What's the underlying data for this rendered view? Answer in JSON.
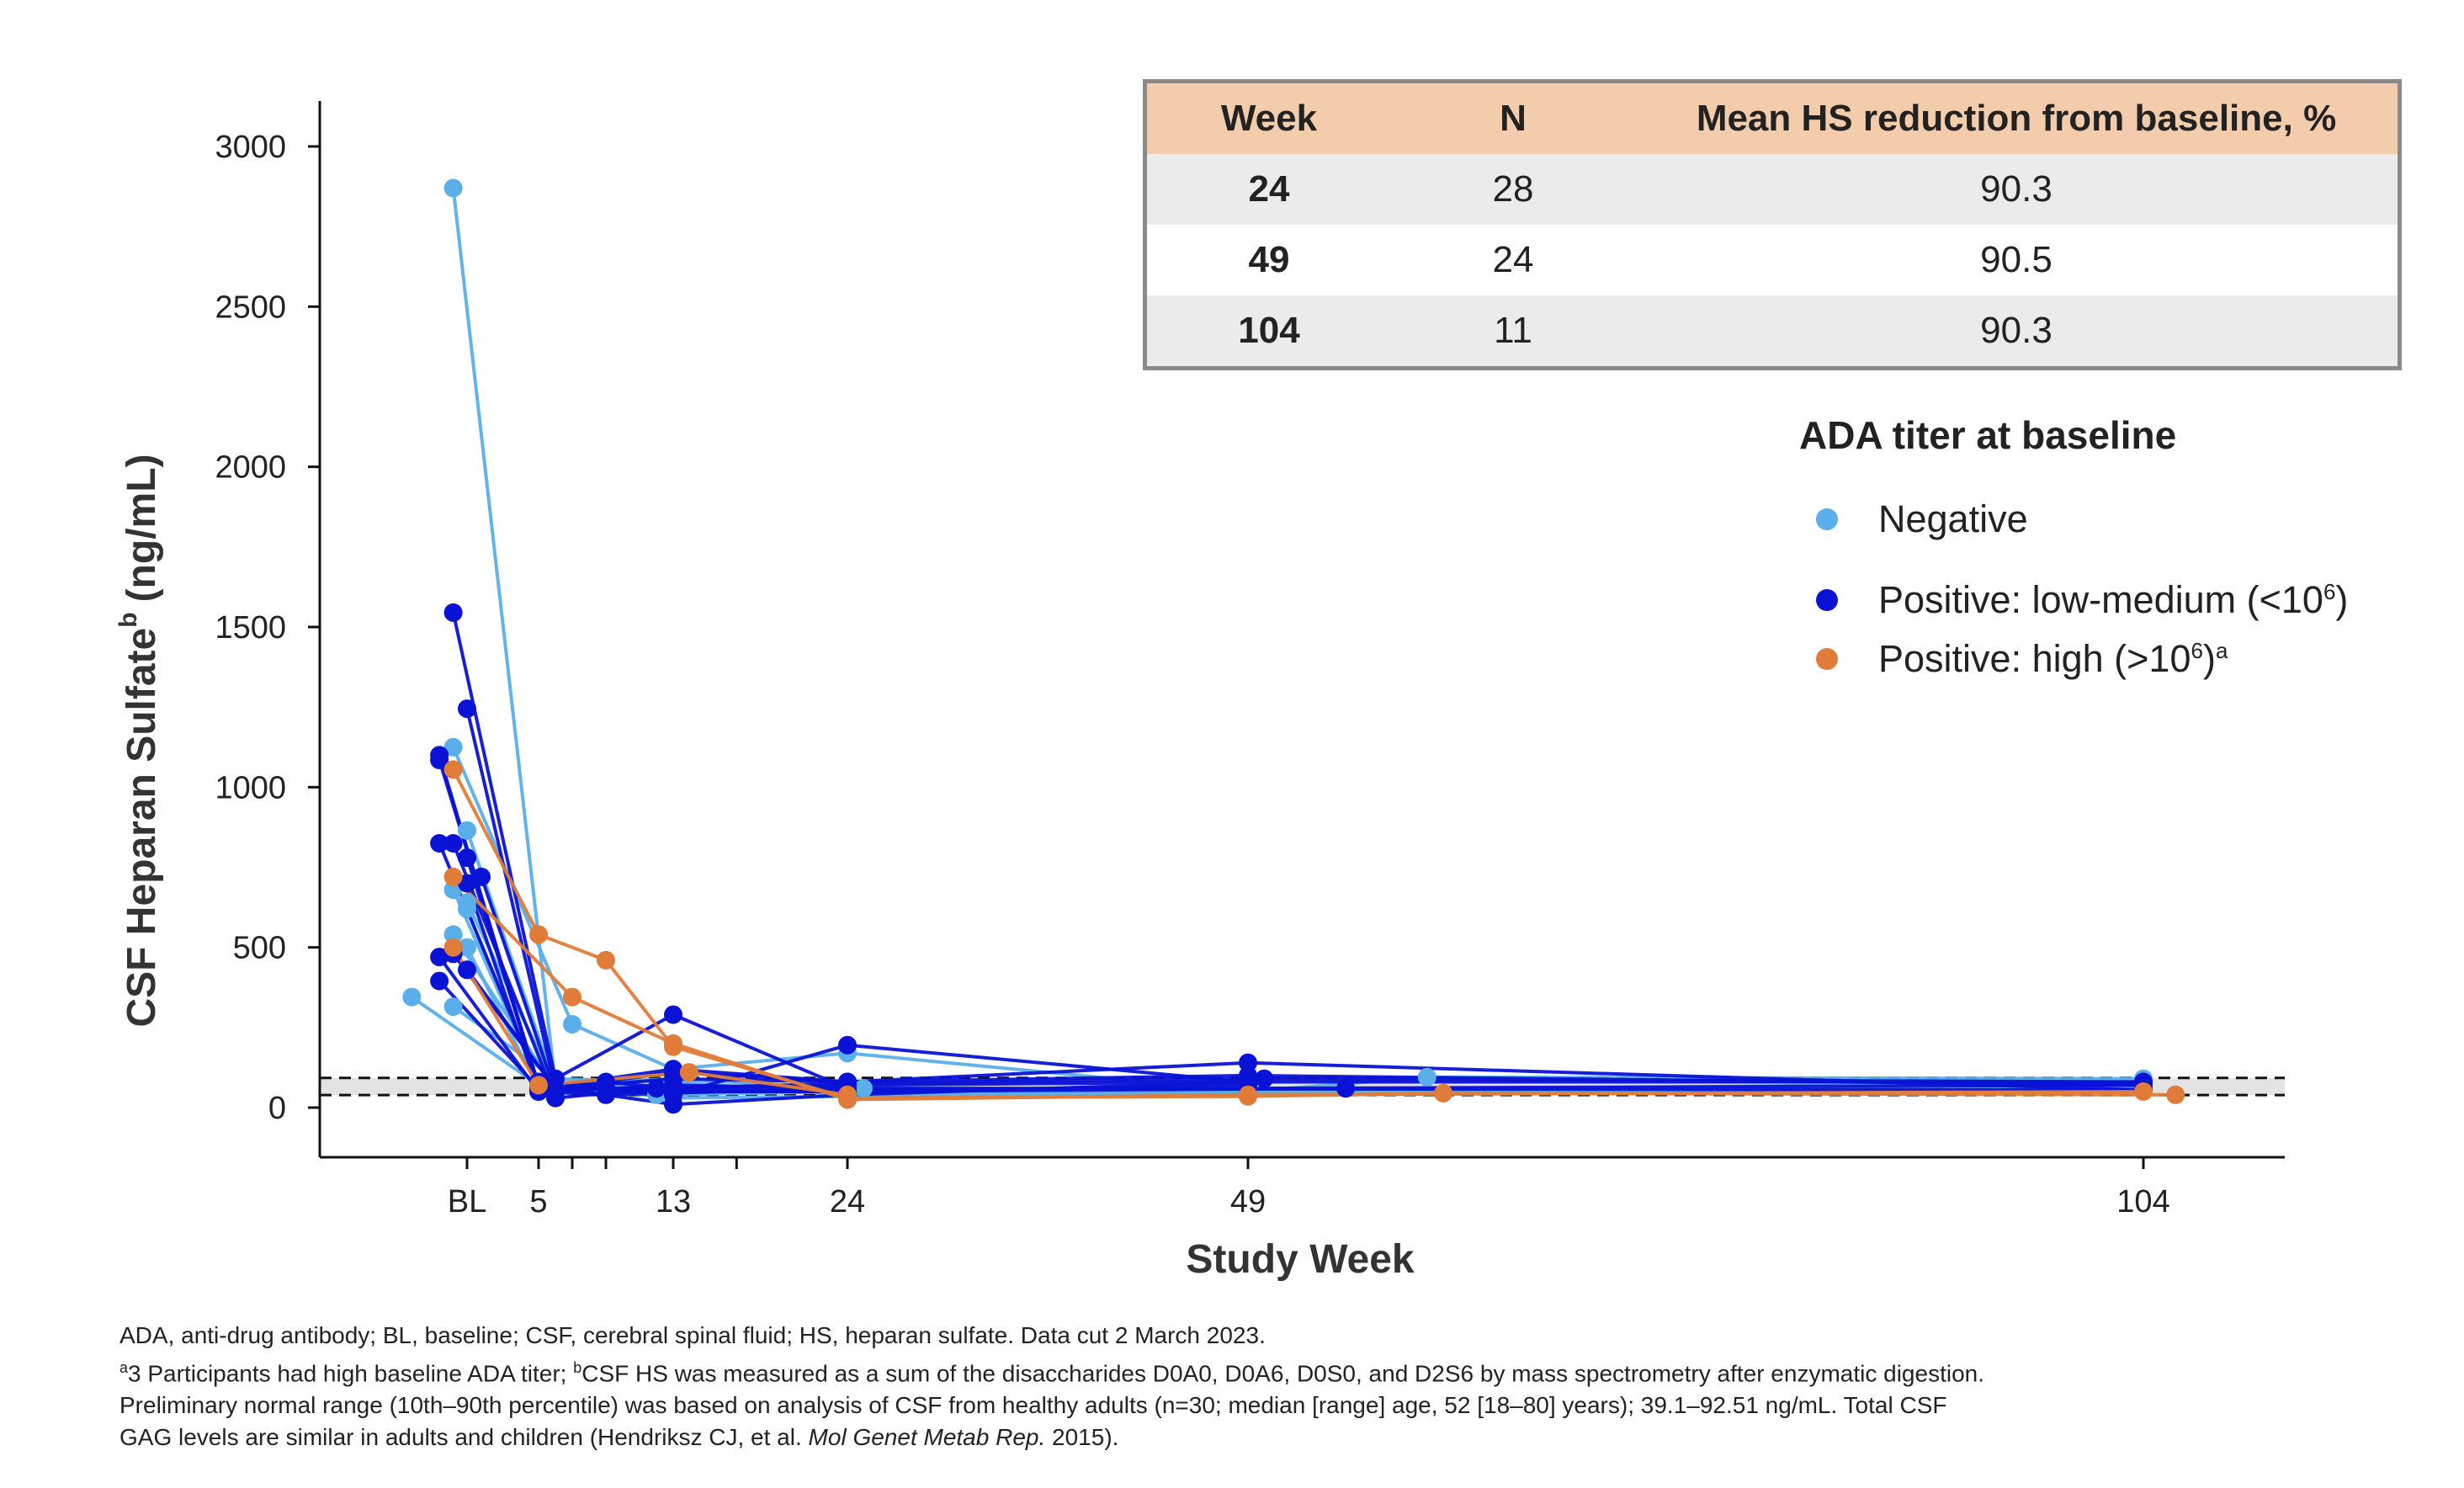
{
  "chart_data": {
    "type": "line",
    "ylabel": "CSF Heparan Sulfate",
    "ylabel_sup": "b",
    "ylabel_unit": "(ng/mL)",
    "xlabel": "Study Week",
    "ylim": [
      0,
      3000
    ],
    "y_ticks": [
      0,
      500,
      1000,
      1500,
      2000,
      2500,
      3000
    ],
    "x_ticks": [
      {
        "label": "BL",
        "week": 0
      },
      {
        "label": "5",
        "week": 5
      },
      {
        "label": "13",
        "week": 13
      },
      {
        "label": "24",
        "week": 24
      },
      {
        "label": "49",
        "week": 49
      },
      {
        "label": "104",
        "week": 104
      }
    ],
    "x_minor_ticks": [
      7,
      9,
      17
    ],
    "xlim": [
      -7,
      112
    ],
    "normal_range": {
      "low": 39.1,
      "high": 92.51
    },
    "series": [
      {
        "name": "Negative",
        "color": "#5aaeea",
        "participants": [
          [
            [
              -1,
              2870
            ],
            [
              6,
              70
            ],
            [
              24,
              50
            ],
            [
              49,
              50
            ],
            [
              104,
              80
            ]
          ],
          [
            [
              -4,
              345
            ],
            [
              5,
              70
            ],
            [
              13,
              40
            ],
            [
              24,
              60
            ]
          ],
          [
            [
              -1,
              1125
            ],
            [
              7,
              260
            ],
            [
              13,
              120
            ],
            [
              24,
              170
            ],
            [
              49,
              50
            ]
          ],
          [
            [
              0,
              865
            ],
            [
              6,
              70
            ],
            [
              13,
              60
            ],
            [
              24,
              45
            ],
            [
              49,
              45
            ],
            [
              104,
              60
            ]
          ],
          [
            [
              -1,
              680
            ],
            [
              5,
              80
            ],
            [
              13,
              50
            ],
            [
              25,
              60
            ]
          ],
          [
            [
              0,
              620
            ],
            [
              5,
              70
            ],
            [
              13,
              90
            ],
            [
              24,
              60
            ],
            [
              49,
              60
            ]
          ],
          [
            [
              -1,
              540
            ],
            [
              6,
              60
            ],
            [
              12,
              40
            ],
            [
              24,
              50
            ]
          ],
          [
            [
              -1,
              315
            ],
            [
              6,
              90
            ],
            [
              13,
              80
            ],
            [
              24,
              40
            ]
          ],
          [
            [
              0,
              640
            ],
            [
              6,
              70
            ],
            [
              13,
              30
            ],
            [
              24,
              35
            ],
            [
              49,
              50
            ],
            [
              60,
              95
            ],
            [
              104,
              90
            ]
          ],
          [
            [
              0,
              500
            ],
            [
              5,
              60
            ],
            [
              13,
              70
            ],
            [
              24,
              50
            ],
            [
              49,
              70
            ]
          ]
        ]
      },
      {
        "name": "Positive: low-medium (<10⁶)",
        "color": "#0a12d6",
        "participants": [
          [
            [
              -1,
              1545
            ],
            [
              6,
              90
            ],
            [
              13,
              290
            ],
            [
              24,
              60
            ],
            [
              49,
              60
            ],
            [
              104,
              70
            ]
          ],
          [
            [
              0,
              1245
            ],
            [
              6,
              60
            ],
            [
              13,
              110
            ],
            [
              24,
              80
            ],
            [
              49,
              140
            ],
            [
              104,
              55
            ]
          ],
          [
            [
              -2,
              1100
            ],
            [
              5,
              60
            ],
            [
              13,
              120
            ],
            [
              24,
              80
            ],
            [
              49,
              100
            ],
            [
              104,
              70
            ]
          ],
          [
            [
              -2,
              1085
            ],
            [
              5,
              70
            ],
            [
              13,
              50
            ],
            [
              24,
              50
            ],
            [
              49,
              70
            ]
          ],
          [
            [
              -2,
              825
            ],
            [
              5,
              80
            ],
            [
              13,
              40
            ],
            [
              24,
              195
            ],
            [
              49,
              80
            ],
            [
              104,
              80
            ]
          ],
          [
            [
              -1,
              825
            ],
            [
              6,
              30
            ],
            [
              12,
              60
            ],
            [
              24,
              75
            ],
            [
              50,
              90
            ],
            [
              104,
              80
            ]
          ],
          [
            [
              0,
              780
            ],
            [
              5,
              70
            ],
            [
              13,
              10
            ],
            [
              24,
              40
            ],
            [
              49,
              80
            ]
          ],
          [
            [
              1,
              720
            ],
            [
              6,
              50
            ],
            [
              13,
              70
            ],
            [
              24,
              60
            ],
            [
              104,
              55
            ]
          ],
          [
            [
              0,
              700
            ],
            [
              5,
              50
            ],
            [
              9,
              80
            ],
            [
              13,
              60
            ],
            [
              24,
              50
            ],
            [
              55,
              60
            ]
          ],
          [
            [
              -2,
              470
            ],
            [
              5,
              50
            ],
            [
              9,
              40
            ],
            [
              24,
              60
            ]
          ],
          [
            [
              -1,
              480
            ],
            [
              6,
              60
            ],
            [
              13,
              90
            ],
            [
              24,
              80
            ]
          ],
          [
            [
              -2,
              395
            ],
            [
              5,
              60
            ],
            [
              9,
              60
            ],
            [
              24,
              70
            ],
            [
              49,
              80
            ]
          ],
          [
            [
              0,
              430
            ],
            [
              6,
              60
            ],
            [
              13,
              50
            ],
            [
              24,
              50
            ]
          ]
        ]
      },
      {
        "name": "Positive: high (>10⁶)",
        "color": "#e07b39",
        "participants": [
          [
            [
              -1,
              1055
            ],
            [
              5,
              540
            ],
            [
              9,
              460
            ],
            [
              13,
              190
            ],
            [
              24,
              30
            ],
            [
              49,
              35
            ],
            [
              61,
              45
            ],
            [
              106,
              40
            ]
          ],
          [
            [
              -1,
              720
            ],
            [
              7,
              345
            ],
            [
              13,
              200
            ],
            [
              24,
              25
            ],
            [
              49,
              40
            ],
            [
              104,
              50
            ]
          ],
          [
            [
              -1,
              500
            ],
            [
              5,
              70
            ],
            [
              14,
              110
            ],
            [
              24,
              40
            ]
          ]
        ]
      }
    ]
  },
  "table": {
    "headers": [
      "Week",
      "N",
      "Mean HS reduction from baseline, %"
    ],
    "rows": [
      [
        "24",
        "28",
        "90.3"
      ],
      [
        "49",
        "24",
        "90.5"
      ],
      [
        "104",
        "11",
        "90.3"
      ]
    ]
  },
  "legend": {
    "title": "ADA titer at baseline",
    "items": [
      {
        "label": "Negative",
        "color": "#5aaeea"
      },
      {
        "label": "Positive: low-medium (<10",
        "sup": "6",
        "suffix": ")",
        "color": "#0a12d6"
      },
      {
        "label": "Positive: high (>10",
        "sup": "6",
        "suffix": ")",
        "sup2": "a",
        "color": "#e07b39"
      }
    ]
  },
  "footnotes": {
    "line1": "ADA, anti-drug antibody; BL, baseline; CSF, cerebral spinal fluid; HS, heparan sulfate. Data cut 2 March 2023.",
    "line2_sup": "a",
    "line2_a": "3 Participants had high baseline ADA titer; ",
    "line2_sup_b": "b",
    "line2_b": "CSF HS was measured as a sum of the disaccharides D0A0, D0A6, D0S0, and D2S6 by mass spectrometry after enzymatic digestion.",
    "line3": "Preliminary normal range (10th–90th percentile) was based on analysis of CSF from healthy adults (n=30; median [range] age, 52 [18–80] years); 39.1–92.51 ng/mL. Total CSF",
    "line4_a": "GAG levels are similar in adults and children (Hendriksz CJ, et al. ",
    "line4_italic": "Mol Genet Metab Rep.",
    "line4_b": " 2015)."
  }
}
